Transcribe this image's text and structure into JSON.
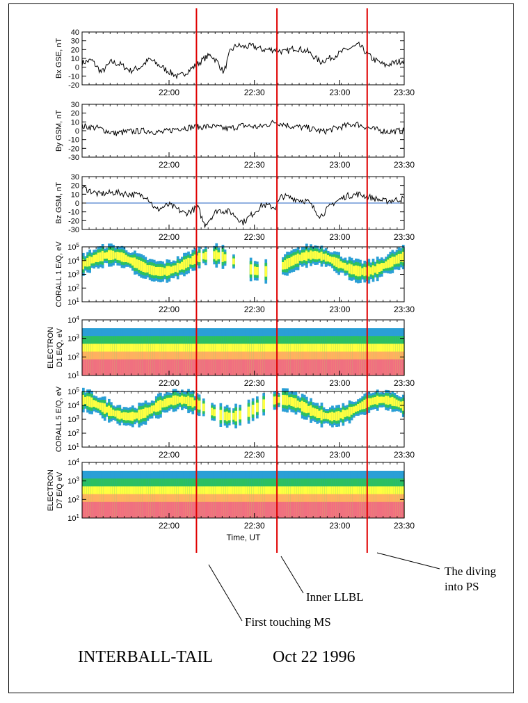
{
  "title": "INTERBALL-TAIL",
  "date": "Oct 22 1996",
  "chart_data": {
    "type": "line",
    "xlabel": "Time, UT",
    "x_ticks": [
      "22:00",
      "22:30",
      "23:00",
      "23:30"
    ],
    "panels": [
      {
        "ylabel": "Bx GSE, nT",
        "kind": "line",
        "yticks": [
          "40",
          "30",
          "20",
          "10",
          "0",
          "-10",
          "-20"
        ],
        "ylim": [
          -20,
          40
        ],
        "series": [
          [
            0.0,
            5
          ],
          [
            0.03,
            8
          ],
          [
            0.06,
            -6
          ],
          [
            0.09,
            6
          ],
          [
            0.12,
            3
          ],
          [
            0.15,
            -4
          ],
          [
            0.18,
            0
          ],
          [
            0.21,
            9
          ],
          [
            0.24,
            2
          ],
          [
            0.27,
            -5
          ],
          [
            0.3,
            -11
          ],
          [
            0.33,
            -4
          ],
          [
            0.36,
            4
          ],
          [
            0.38,
            10
          ],
          [
            0.4,
            14
          ],
          [
            0.42,
            6
          ],
          [
            0.44,
            -6
          ],
          [
            0.46,
            18
          ],
          [
            0.48,
            25
          ],
          [
            0.5,
            23
          ],
          [
            0.53,
            24
          ],
          [
            0.56,
            20
          ],
          [
            0.6,
            20
          ],
          [
            0.63,
            17
          ],
          [
            0.66,
            22
          ],
          [
            0.7,
            18
          ],
          [
            0.74,
            6
          ],
          [
            0.78,
            12
          ],
          [
            0.82,
            20
          ],
          [
            0.86,
            25
          ],
          [
            0.9,
            10
          ],
          [
            0.94,
            2
          ],
          [
            1.0,
            8
          ]
        ]
      },
      {
        "ylabel": "By GSM, nT",
        "kind": "line",
        "yticks": [
          "30",
          "20",
          "10",
          "0",
          "-10",
          "-20",
          "-30"
        ],
        "ylim": [
          -30,
          30
        ],
        "series": [
          [
            0.0,
            5
          ],
          [
            0.05,
            3
          ],
          [
            0.1,
            -3
          ],
          [
            0.15,
            -1
          ],
          [
            0.2,
            0
          ],
          [
            0.25,
            -2
          ],
          [
            0.3,
            3
          ],
          [
            0.35,
            4
          ],
          [
            0.4,
            5
          ],
          [
            0.45,
            2
          ],
          [
            0.5,
            6
          ],
          [
            0.55,
            4
          ],
          [
            0.6,
            10
          ],
          [
            0.65,
            5
          ],
          [
            0.7,
            3
          ],
          [
            0.75,
            -1
          ],
          [
            0.8,
            4
          ],
          [
            0.85,
            8
          ],
          [
            0.9,
            2
          ],
          [
            0.95,
            -1
          ],
          [
            1.0,
            0
          ]
        ]
      },
      {
        "ylabel": "Bz GSM, nT",
        "kind": "line",
        "yticks": [
          "30",
          "20",
          "10",
          "0",
          "-10",
          "-20",
          "-30"
        ],
        "ylim": [
          -30,
          30
        ],
        "series": [
          [
            0.0,
            18
          ],
          [
            0.05,
            10
          ],
          [
            0.1,
            12
          ],
          [
            0.15,
            10
          ],
          [
            0.2,
            8
          ],
          [
            0.23,
            -8
          ],
          [
            0.27,
            -2
          ],
          [
            0.32,
            -12
          ],
          [
            0.36,
            -5
          ],
          [
            0.38,
            -25
          ],
          [
            0.42,
            -8
          ],
          [
            0.46,
            -10
          ],
          [
            0.5,
            -22
          ],
          [
            0.56,
            -2
          ],
          [
            0.6,
            -5
          ],
          [
            0.62,
            8
          ],
          [
            0.66,
            5
          ],
          [
            0.7,
            2
          ],
          [
            0.74,
            -15
          ],
          [
            0.78,
            0
          ],
          [
            0.82,
            8
          ],
          [
            0.86,
            10
          ],
          [
            0.9,
            6
          ],
          [
            0.94,
            2
          ],
          [
            1.0,
            5
          ]
        ]
      },
      {
        "ylabel": "CORALL 1 E/Q, eV",
        "kind": "spectrogram",
        "yticks": [
          "10^5",
          "10^4",
          "10^3",
          "10^2",
          "10^1"
        ]
      },
      {
        "ylabel": "ELECTRON D1 E/Q, eV",
        "kind": "spectrogram",
        "yticks": [
          "10^4",
          "10^3",
          "10^2",
          "10^1"
        ]
      },
      {
        "ylabel": "CORALL 5 E/Q, eV",
        "kind": "spectrogram",
        "yticks": [
          "10^5",
          "10^4",
          "10^3",
          "10^2",
          "10^1"
        ]
      },
      {
        "ylabel": "ELECTRON D7 E/Q eV",
        "kind": "spectrogram",
        "yticks": [
          "10^4",
          "10^3",
          "10^2",
          "10^1"
        ]
      }
    ],
    "markers": [
      {
        "time_fraction": 0.355,
        "label": "First touching MS"
      },
      {
        "time_fraction": 0.605,
        "label": "Inner LLBL"
      },
      {
        "time_fraction": 0.885,
        "label": "The diving into PS"
      }
    ],
    "colors": {
      "marker": "#e00000",
      "axes": "#000000",
      "spectrum": [
        "#2a9fd6",
        "#2cc060",
        "#ffff40",
        "#ffb060",
        "#f07080"
      ]
    }
  }
}
